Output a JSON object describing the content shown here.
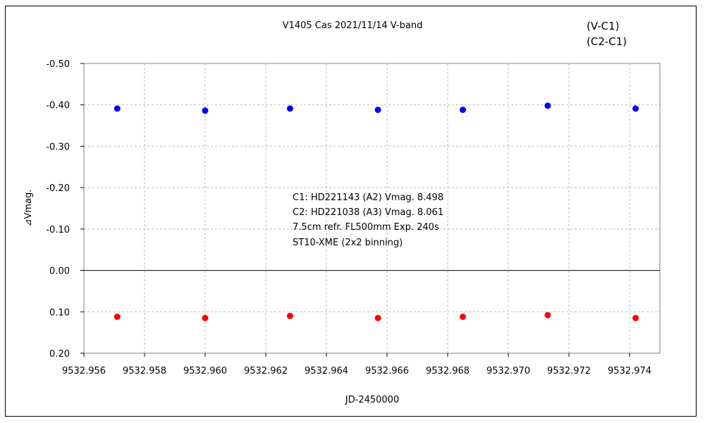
{
  "chart_data": {
    "type": "scatter",
    "title": "V1405 Cas   2021/11/14   V-band",
    "xlabel": "JD-2450000",
    "ylabel": "⊿Vmag.",
    "xlim": [
      9532.956,
      9532.975
    ],
    "ylim": [
      0.2,
      -0.5
    ],
    "y_inverted": true,
    "x_ticks": [
      "9532.956",
      "9532.958",
      "9532.960",
      "9532.962",
      "9532.964",
      "9532.966",
      "9532.968",
      "9532.970",
      "9532.972",
      "9532.974"
    ],
    "y_ticks": [
      "-0.50",
      "-0.40",
      "-0.30",
      "-0.20",
      "-0.10",
      "0.00",
      "0.10",
      "0.20"
    ],
    "grid": true,
    "legend_position": "top-right",
    "series": [
      {
        "name": "(V-C1)",
        "color": "#ff0000",
        "points": [
          {
            "x": 9532.9571,
            "y": 0.112
          },
          {
            "x": 9532.96,
            "y": 0.115
          },
          {
            "x": 9532.9628,
            "y": 0.11
          },
          {
            "x": 9532.9657,
            "y": 0.115
          },
          {
            "x": 9532.9685,
            "y": 0.112
          },
          {
            "x": 9532.9713,
            "y": 0.108
          },
          {
            "x": 9532.9742,
            "y": 0.115
          }
        ]
      },
      {
        "name": "(C2-C1)",
        "color": "#0000ff",
        "points": [
          {
            "x": 9532.9571,
            "y": -0.391
          },
          {
            "x": 9532.96,
            "y": -0.386
          },
          {
            "x": 9532.9628,
            "y": -0.391
          },
          {
            "x": 9532.9657,
            "y": -0.388
          },
          {
            "x": 9532.9685,
            "y": -0.388
          },
          {
            "x": 9532.9713,
            "y": -0.398
          },
          {
            "x": 9532.9742,
            "y": -0.391
          }
        ]
      }
    ],
    "annotations": [
      "C1: HD221143 (A2) Vmag. 8.498",
      "C2: HD221038 (A3) Vmag. 8.061",
      "7.5cm refr. FL500mm Exp. 240s",
      "ST10-XME (2x2 binning)"
    ]
  }
}
